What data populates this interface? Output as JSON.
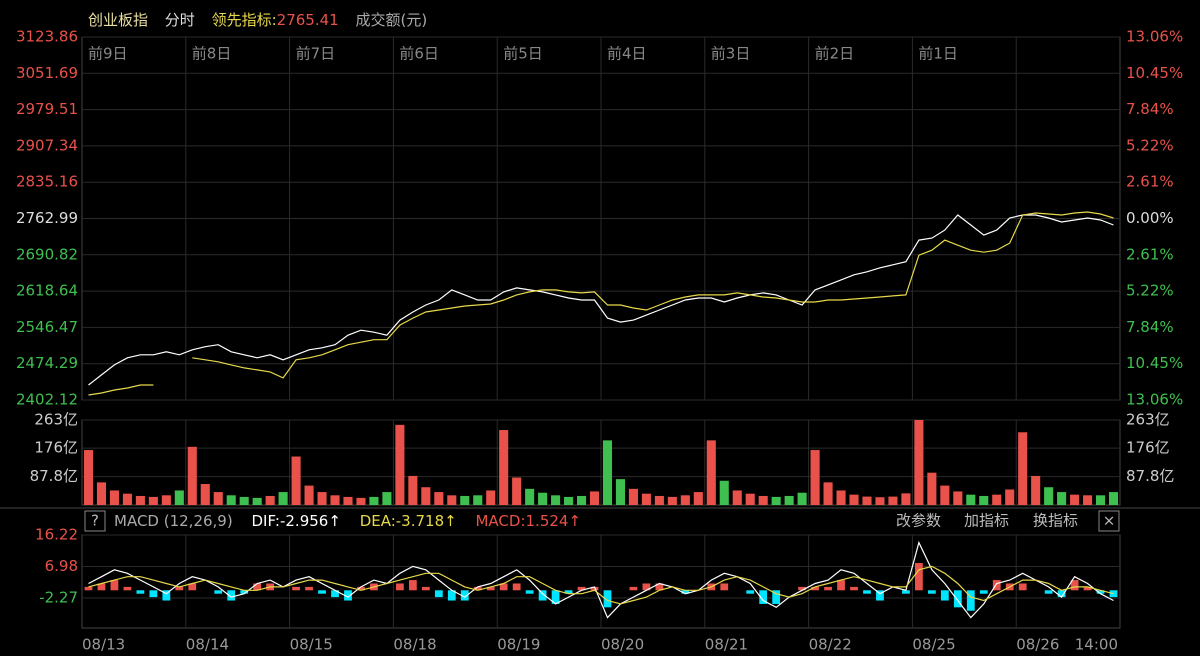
{
  "header": {
    "title": "创业板指",
    "mode": "分时",
    "indicator_label": "领先指标:",
    "indicator_value": 2765.41,
    "volume_label": "成交额(元)"
  },
  "macd_toolbar": {
    "help": "?",
    "name": "MACD (12,26,9)",
    "dif": "DIF:-2.956↑",
    "dea": "DEA:-3.718↑",
    "macd": "MACD:1.524↑",
    "buttons": [
      "改参数",
      "加指标",
      "换指标"
    ],
    "close": "×"
  },
  "chart_data": [
    {
      "type": "line",
      "day_labels": [
        "前9日",
        "前8日",
        "前7日",
        "前6日",
        "前5日",
        "前4日",
        "前3日",
        "前2日",
        "前1日"
      ],
      "x_labels": [
        "08/13",
        "08/14",
        "08/15",
        "08/18",
        "08/19",
        "08/20",
        "08/21",
        "08/22",
        "08/25",
        "08/26",
        "14:00"
      ],
      "ylim": [
        2402.12,
        3123.86
      ],
      "yticks": [
        3123.86,
        3051.69,
        2979.51,
        2907.34,
        2835.16,
        2762.99,
        2690.82,
        2618.64,
        2546.47,
        2474.29,
        2402.12
      ],
      "y2lim": [
        -13.06,
        13.06
      ],
      "y2ticks": [
        {
          "value": 13.06,
          "label": "13.06%"
        },
        {
          "value": 10.45,
          "label": "10.45%"
        },
        {
          "value": 7.84,
          "label": "7.84%"
        },
        {
          "value": 5.22,
          "label": "5.22%"
        },
        {
          "value": 2.61,
          "label": "2.61%"
        },
        {
          "value": 0,
          "label": "0.00%"
        },
        {
          "value": -2.61,
          "label": "2.61%"
        },
        {
          "value": -5.22,
          "label": "5.22%"
        },
        {
          "value": -7.84,
          "label": "7.84%"
        },
        {
          "value": -10.45,
          "label": "10.45%"
        },
        {
          "value": -13.06,
          "label": "13.06%"
        }
      ],
      "up_color": "#e8524a",
      "down_color": "#3fbf4f",
      "flat_color": "#dddddd",
      "series": [
        {
          "color": "#ffffff",
          "values": [
            2432,
            2452,
            2472,
            2486,
            2492,
            2492,
            2498,
            2492,
            2502,
            2508,
            2512,
            2498,
            2492,
            2486,
            2492,
            2482,
            2492,
            2502,
            2506,
            2512,
            2531,
            2541,
            2537,
            2531,
            2561,
            2577,
            2591,
            2601,
            2621,
            2611,
            2601,
            2601,
            2617,
            2625,
            2621,
            2617,
            2611,
            2605,
            2601,
            2601,
            2565,
            2557,
            2561,
            2571,
            2581,
            2591,
            2601,
            2605,
            2605,
            2597,
            2605,
            2611,
            2615,
            2611,
            2601,
            2591,
            2621,
            2631,
            2641,
            2651,
            2657,
            2665,
            2671,
            2677,
            2720,
            2724,
            2740,
            2770,
            2750,
            2730,
            2740,
            2764,
            2770,
            2770,
            2764,
            2756,
            2760,
            2764,
            2760,
            2750
          ]
        },
        {
          "color": "#e6d84a",
          "values": [
            2412,
            2416,
            2422,
            2426,
            2432,
            2432,
            null,
            null,
            2486,
            2482,
            2478,
            2472,
            2466,
            2462,
            2458,
            2446,
            2482,
            2486,
            2492,
            2502,
            2512,
            2517,
            2522,
            2522,
            2551,
            2565,
            2577,
            2581,
            2585,
            2589,
            2591,
            2593,
            2601,
            2611,
            2617,
            2621,
            2621,
            2617,
            2615,
            2617,
            2591,
            2591,
            2585,
            2581,
            2591,
            2601,
            2607,
            2611,
            2611,
            2611,
            2615,
            2611,
            2607,
            2605,
            2601,
            2597,
            2597,
            2601,
            2601,
            2603,
            2605,
            2607,
            2609,
            2611,
            2690,
            2700,
            2720,
            2710,
            2700,
            2696,
            2700,
            2714,
            2770,
            2774,
            2772,
            2770,
            2774,
            2776,
            2772,
            2764
          ]
        }
      ]
    },
    {
      "type": "bar",
      "ylim": [
        0,
        263
      ],
      "yticks": [
        {
          "value": 263,
          "label": "263亿"
        },
        {
          "value": 176,
          "label": "176亿"
        },
        {
          "value": 87.8,
          "label": "87.8亿"
        }
      ],
      "label_color": "#cccccc",
      "up_color": "#e8524a",
      "down_color": "#3fbf4f",
      "values": [
        170,
        70,
        45,
        35,
        28,
        25,
        30,
        45,
        180,
        65,
        40,
        30,
        25,
        22,
        28,
        40,
        150,
        60,
        40,
        30,
        25,
        22,
        25,
        40,
        248,
        90,
        55,
        40,
        30,
        28,
        30,
        45,
        232,
        85,
        50,
        38,
        30,
        25,
        28,
        42,
        200,
        80,
        50,
        35,
        28,
        25,
        30,
        40,
        200,
        75,
        45,
        35,
        28,
        25,
        28,
        38,
        170,
        70,
        45,
        32,
        26,
        24,
        26,
        36,
        263,
        100,
        60,
        42,
        32,
        28,
        32,
        48,
        225,
        90,
        55,
        40,
        32,
        30,
        30,
        40
      ]
    },
    {
      "type": "macd",
      "ylim": [
        -11.06,
        16.22
      ],
      "yticks": [
        16.22,
        6.98,
        -2.27
      ],
      "up_color": "#e8524a",
      "down_color": "#3fbf4f",
      "bar_up_color": "#e8524a",
      "bar_down_color": "#00e5ff",
      "dif": {
        "color": "#ffffff",
        "values": [
          2,
          4,
          6,
          5,
          3,
          1,
          -1,
          2,
          4,
          3,
          1,
          -2,
          -1,
          2,
          3,
          1,
          3,
          4,
          2,
          0,
          -2,
          1,
          3,
          2,
          5,
          7,
          6,
          3,
          0,
          -2,
          1,
          2,
          4,
          6,
          3,
          -1,
          -4,
          -2,
          0,
          1,
          -8,
          -4,
          -2,
          0,
          2,
          1,
          -1,
          0,
          3,
          5,
          4,
          2,
          -3,
          -5,
          -2,
          0,
          2,
          3,
          6,
          5,
          2,
          -1,
          1,
          0,
          14,
          6,
          2,
          -3,
          -8,
          -4,
          2,
          3,
          5,
          3,
          1,
          -2,
          4,
          2,
          -1,
          -3
        ]
      },
      "dea": {
        "color": "#e6d84a",
        "values": [
          1,
          2,
          3,
          4,
          4,
          3,
          2,
          1,
          2,
          3,
          2,
          1,
          0,
          0,
          1,
          1,
          2,
          3,
          3,
          2,
          1,
          0,
          1,
          2,
          3,
          4,
          5,
          5,
          3,
          1,
          0,
          1,
          2,
          4,
          4,
          2,
          0,
          -1,
          -1,
          0,
          -3,
          -4,
          -3,
          -2,
          0,
          1,
          0,
          0,
          1,
          3,
          4,
          3,
          1,
          -1,
          -2,
          -1,
          1,
          2,
          3,
          4,
          3,
          2,
          1,
          1,
          6,
          7,
          5,
          2,
          -2,
          -3,
          -1,
          1,
          3,
          3,
          2,
          0,
          1,
          1,
          0,
          -1
        ]
      },
      "histogram": [
        1,
        2,
        3,
        1,
        -1,
        -2,
        -3,
        1,
        2,
        0,
        -1,
        -3,
        -1,
        2,
        2,
        0,
        1,
        1,
        -1,
        -2,
        -3,
        1,
        2,
        0,
        2,
        3,
        1,
        -2,
        -3,
        -3,
        1,
        1,
        2,
        2,
        -1,
        -3,
        -4,
        -1,
        1,
        1,
        -5,
        0,
        1,
        2,
        2,
        0,
        -1,
        0,
        2,
        2,
        0,
        -1,
        -4,
        -4,
        0,
        1,
        1,
        1,
        3,
        1,
        -1,
        -3,
        0,
        -1,
        8,
        -1,
        -3,
        -5,
        -6,
        -1,
        3,
        2,
        2,
        0,
        -1,
        -2,
        3,
        1,
        -1,
        -2
      ]
    }
  ]
}
